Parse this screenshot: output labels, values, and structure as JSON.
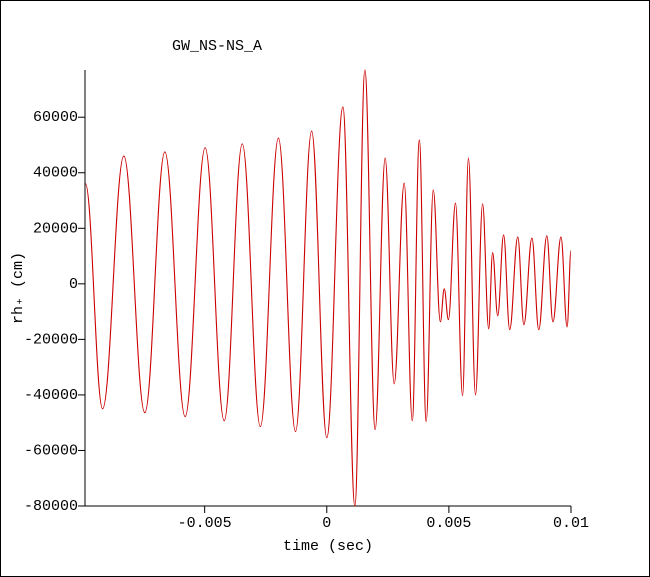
{
  "chart_data": {
    "type": "line",
    "title": "GW_NS-NS_A",
    "x_label": "time (sec)",
    "y_label": "rh₊ (cm)",
    "x": [
      -0.00988,
      -0.00918,
      -0.00831,
      -0.00745,
      -0.00663,
      -0.0058,
      -0.00498,
      -0.0042,
      -0.00346,
      -0.00272,
      -0.00198,
      -0.00128,
      -0.00062,
      0,
      0.00066,
      0.00115,
      0.00156,
      0.00198,
      0.00239,
      0.00276,
      0.00317,
      0.0035,
      0.00379,
      0.00407,
      0.00436,
      0.00465,
      0.00481,
      0.00498,
      0.00527,
      0.00556,
      0.0058,
      0.00609,
      0.00638,
      0.00663,
      0.00679,
      0.007,
      0.00724,
      0.00749,
      0.00782,
      0.00807,
      0.0084,
      0.00868,
      0.00901,
      0.00926,
      0.00959,
      0.00984,
      0.01
    ],
    "series": [
      {
        "name": "rh+",
        "color": "#cc0000",
        "values": [
          36000,
          -45000,
          46000,
          -46400,
          47500,
          -47800,
          49000,
          -49300,
          50400,
          -51400,
          52500,
          -53200,
          55000,
          -55400,
          63700,
          -80000,
          77000,
          -52500,
          45300,
          -36000,
          36300,
          -49300,
          51800,
          -49600,
          33800,
          -13700,
          -1800,
          -12900,
          29100,
          -40300,
          45300,
          -40000,
          28800,
          -16200,
          11200,
          -11500,
          17600,
          -16500,
          16900,
          -14700,
          16500,
          -16500,
          17300,
          -13700,
          16900,
          -15500,
          12000
        ]
      }
    ],
    "xlim": [
      -0.0099,
      0.01
    ],
    "ylim": [
      -80000,
      77000
    ],
    "xticks": [
      -0.005,
      0,
      0.005,
      0.01
    ],
    "yticks": [
      -80000,
      -60000,
      -40000,
      -20000,
      0,
      20000,
      40000,
      60000
    ]
  }
}
